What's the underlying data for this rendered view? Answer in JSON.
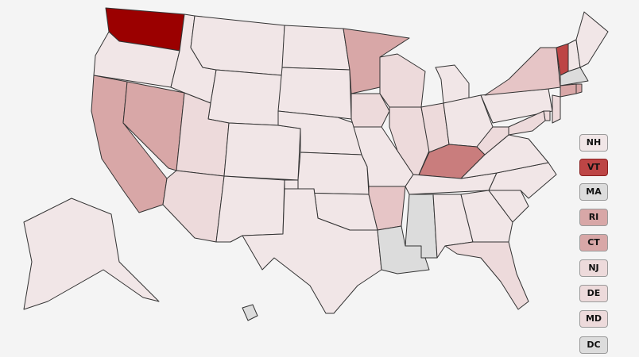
{
  "palette": {
    "dark": "#9b0000",
    "strong": "#bd4545",
    "medium": "#c97d7d",
    "mid": "#d8a7a7",
    "light_mid": "#e6c5c6",
    "pale": "#eddadb",
    "faint": "#f1e6e7",
    "none": "#dcdcdc"
  },
  "states": {
    "WA": "dark",
    "OR": "faint",
    "CA": "mid",
    "NV": "mid",
    "ID": "faint",
    "MT": "faint",
    "WY": "faint",
    "UT": "pale",
    "AZ": "pale",
    "CO": "faint",
    "NM": "faint",
    "ND": "faint",
    "SD": "faint",
    "NE": "faint",
    "KS": "faint",
    "OK": "faint",
    "TX": "faint",
    "MN": "mid",
    "IA": "pale",
    "MO": "faint",
    "AR": "light_mid",
    "LA": "none",
    "WI": "pale",
    "IL": "pale",
    "MI": "faint",
    "IN": "pale",
    "OH": "faint",
    "KY": "medium",
    "TN": "faint",
    "MS": "none",
    "AL": "faint",
    "GA": "faint",
    "FL": "pale",
    "SC": "faint",
    "NC": "faint",
    "VA": "faint",
    "WV": "pale",
    "PA": "faint",
    "NY": "light_mid",
    "VT": "strong",
    "NH": "faint",
    "ME": "faint",
    "MA": "none",
    "CT": "mid",
    "RI": "mid",
    "NJ": "pale",
    "DE": "pale",
    "MD": "pale",
    "AK": "faint",
    "HI": "none"
  },
  "small_states": [
    {
      "label": "NH",
      "level": "faint"
    },
    {
      "label": "VT",
      "level": "strong"
    },
    {
      "label": "MA",
      "level": "none"
    },
    {
      "label": "RI",
      "level": "mid"
    },
    {
      "label": "CT",
      "level": "mid"
    },
    {
      "label": "NJ",
      "level": "pale"
    },
    {
      "label": "DE",
      "level": "pale"
    },
    {
      "label": "MD",
      "level": "pale"
    },
    {
      "label": "DC",
      "level": "none"
    }
  ]
}
